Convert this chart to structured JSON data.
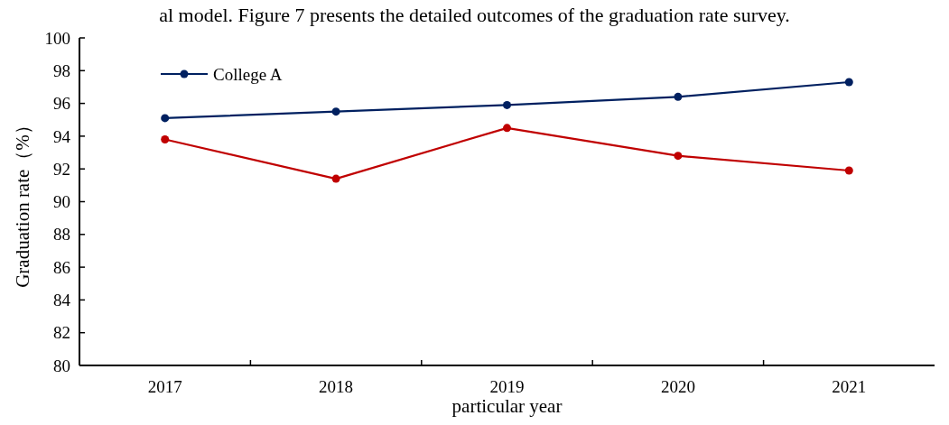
{
  "chart_data": {
    "type": "line",
    "annotations": [
      "al model. Figure 7 presents the detailed outcomes of the graduation rate survey."
    ],
    "xlabel": "particular year",
    "ylabel": "Graduation rate（%）",
    "categories": [
      "2017",
      "2018",
      "2019",
      "2020",
      "2021"
    ],
    "series": [
      {
        "name": "College A",
        "color": "#002060",
        "values": [
          95.1,
          95.5,
          95.9,
          96.4,
          97.3
        ]
      },
      {
        "color": "#c00000",
        "values": [
          93.8,
          91.4,
          94.5,
          92.8,
          91.9
        ]
      }
    ],
    "ylim": [
      80,
      100
    ],
    "yticks": [
      80,
      82,
      84,
      86,
      88,
      90,
      92,
      94,
      96,
      98,
      100
    ],
    "grid": false,
    "legend": "top left",
    "marker": "circle",
    "line_style": "solid"
  }
}
